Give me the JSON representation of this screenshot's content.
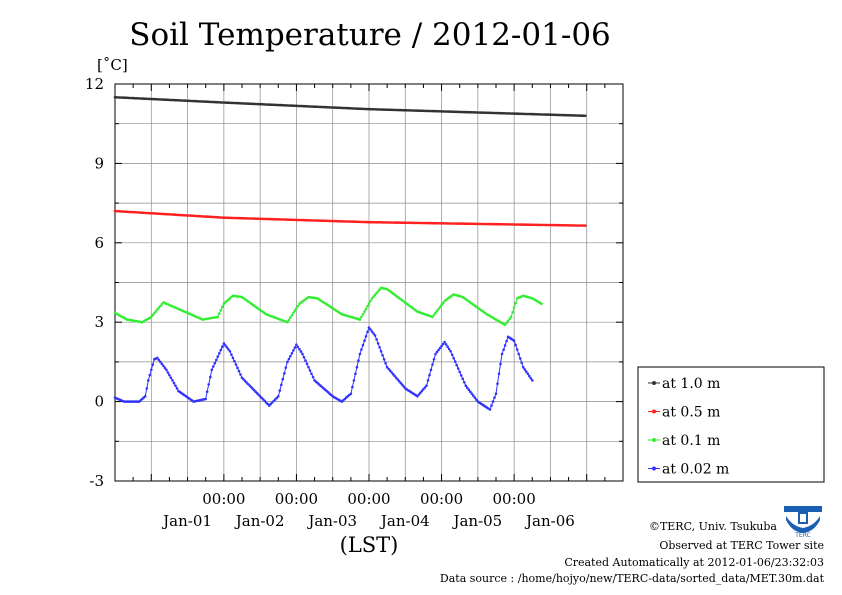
{
  "title": "Soil Temperature / 2012-01-06",
  "unit_label": "[˚C]",
  "x_axis_title": "(LST)",
  "colors": {
    "at 1.0 m": "#333333",
    "at 0.5 m": "#ff2020",
    "at 0.1 m": "#33ee33",
    "at 0.02 m": "#3333ff"
  },
  "footer": {
    "copyright": "©TERC, Univ. Tsukuba",
    "observed": "Observed at TERC Tower site",
    "created": "Created Automatically at 2012-01-06/23:32:03",
    "source": "Data source : /home/hojyo/new/TERC-data/sorted_data/MET.30m.dat"
  },
  "logo_icon": "terc-logo-icon",
  "chart_data": {
    "type": "line",
    "title": "Soil Temperature / 2012-01-06",
    "ylabel": "[˚C]",
    "xlabel": "(LST)",
    "ylim": [
      -3,
      12
    ],
    "yticks": [
      12,
      9,
      6,
      3,
      0,
      -3
    ],
    "xlim_hours": [
      -12,
      156
    ],
    "x_time_ticks": [
      "00:00",
      "00:00",
      "00:00",
      "00:00",
      "00:00"
    ],
    "x_date_labels": [
      "Jan-01",
      "Jan-02",
      "Jan-03",
      "Jan-04",
      "Jan-05",
      "Jan-06"
    ],
    "grid": true,
    "legend_position": "right",
    "x_start": "2011-12-31 12:00",
    "x_step_hours": 0.5,
    "series": [
      {
        "name": "at 1.0 m",
        "keypoints": [
          [
            "2011-12-31 12:00",
            11.5
          ],
          [
            "2012-01-02 00:00",
            11.3
          ],
          [
            "2012-01-04 00:00",
            11.05
          ],
          [
            "2012-01-06 23:30",
            10.8
          ]
        ]
      },
      {
        "name": "at 0.5 m",
        "keypoints": [
          [
            "2011-12-31 12:00",
            7.2
          ],
          [
            "2012-01-02 00:00",
            6.95
          ],
          [
            "2012-01-04 00:00",
            6.78
          ],
          [
            "2012-01-06 23:30",
            6.65
          ]
        ]
      },
      {
        "name": "at 0.1 m",
        "keypoints": [
          [
            "2011-12-31 12:00",
            3.35
          ],
          [
            "2011-12-31 16:00",
            3.1
          ],
          [
            "2011-12-31 21:00",
            3.0
          ],
          [
            "2012-01-01 00:00",
            3.2
          ],
          [
            "2012-01-01 04:00",
            3.75
          ],
          [
            "2012-01-01 07:00",
            3.6
          ],
          [
            "2012-01-01 17:00",
            3.1
          ],
          [
            "2012-01-01 22:00",
            3.2
          ],
          [
            "2012-01-02 00:00",
            3.7
          ],
          [
            "2012-01-02 03:00",
            4.0
          ],
          [
            "2012-01-02 06:00",
            3.95
          ],
          [
            "2012-01-02 14:00",
            3.3
          ],
          [
            "2012-01-02 21:00",
            3.0
          ],
          [
            "2012-01-03 01:00",
            3.7
          ],
          [
            "2012-01-03 04:00",
            3.95
          ],
          [
            "2012-01-03 07:00",
            3.9
          ],
          [
            "2012-01-03 15:00",
            3.3
          ],
          [
            "2012-01-03 21:00",
            3.1
          ],
          [
            "2012-01-04 01:00",
            3.9
          ],
          [
            "2012-01-04 04:00",
            4.3
          ],
          [
            "2012-01-04 06:00",
            4.25
          ],
          [
            "2012-01-04 16:00",
            3.4
          ],
          [
            "2012-01-04 21:00",
            3.2
          ],
          [
            "2012-01-05 01:00",
            3.8
          ],
          [
            "2012-01-05 04:00",
            4.05
          ],
          [
            "2012-01-05 07:00",
            3.95
          ],
          [
            "2012-01-05 15:00",
            3.3
          ],
          [
            "2012-01-05 21:00",
            2.9
          ],
          [
            "2012-01-05 23:00",
            3.2
          ],
          [
            "2012-01-06 01:00",
            3.9
          ],
          [
            "2012-01-06 03:00",
            4.0
          ],
          [
            "2012-01-06 06:00",
            3.9
          ],
          [
            "2012-01-06 09:00",
            3.7
          ]
        ]
      },
      {
        "name": "at 0.02 m",
        "keypoints": [
          [
            "2011-12-31 12:00",
            0.15
          ],
          [
            "2011-12-31 15:00",
            0.0
          ],
          [
            "2011-12-31 20:00",
            0.0
          ],
          [
            "2011-12-31 22:00",
            0.2
          ],
          [
            "2011-12-31 23:00",
            0.8
          ],
          [
            "2012-01-01 01:00",
            1.6
          ],
          [
            "2012-01-01 02:00",
            1.65
          ],
          [
            "2012-01-01 05:00",
            1.2
          ],
          [
            "2012-01-01 09:00",
            0.4
          ],
          [
            "2012-01-01 14:00",
            0.0
          ],
          [
            "2012-01-01 18:00",
            0.1
          ],
          [
            "2012-01-01 20:00",
            1.2
          ],
          [
            "2012-01-02 00:00",
            2.2
          ],
          [
            "2012-01-02 02:00",
            1.9
          ],
          [
            "2012-01-02 06:00",
            0.9
          ],
          [
            "2012-01-02 12:00",
            0.2
          ],
          [
            "2012-01-02 15:00",
            -0.15
          ],
          [
            "2012-01-02 18:00",
            0.2
          ],
          [
            "2012-01-02 21:00",
            1.5
          ],
          [
            "2012-01-03 00:00",
            2.15
          ],
          [
            "2012-01-03 02:00",
            1.8
          ],
          [
            "2012-01-03 06:00",
            0.8
          ],
          [
            "2012-01-03 12:00",
            0.2
          ],
          [
            "2012-01-03 15:00",
            0.0
          ],
          [
            "2012-01-03 18:00",
            0.3
          ],
          [
            "2012-01-03 21:00",
            1.8
          ],
          [
            "2012-01-04 00:00",
            2.8
          ],
          [
            "2012-01-04 02:00",
            2.5
          ],
          [
            "2012-01-04 06:00",
            1.3
          ],
          [
            "2012-01-04 12:00",
            0.5
          ],
          [
            "2012-01-04 16:00",
            0.2
          ],
          [
            "2012-01-04 19:00",
            0.6
          ],
          [
            "2012-01-04 22:00",
            1.8
          ],
          [
            "2012-01-05 01:00",
            2.25
          ],
          [
            "2012-01-05 03:00",
            1.9
          ],
          [
            "2012-01-05 08:00",
            0.6
          ],
          [
            "2012-01-05 12:00",
            0.0
          ],
          [
            "2012-01-05 16:00",
            -0.3
          ],
          [
            "2012-01-05 18:00",
            0.3
          ],
          [
            "2012-01-05 20:00",
            1.8
          ],
          [
            "2012-01-05 22:00",
            2.45
          ],
          [
            "2012-01-06 00:00",
            2.3
          ],
          [
            "2012-01-06 03:00",
            1.3
          ],
          [
            "2012-01-06 06:00",
            0.8
          ]
        ]
      }
    ]
  }
}
